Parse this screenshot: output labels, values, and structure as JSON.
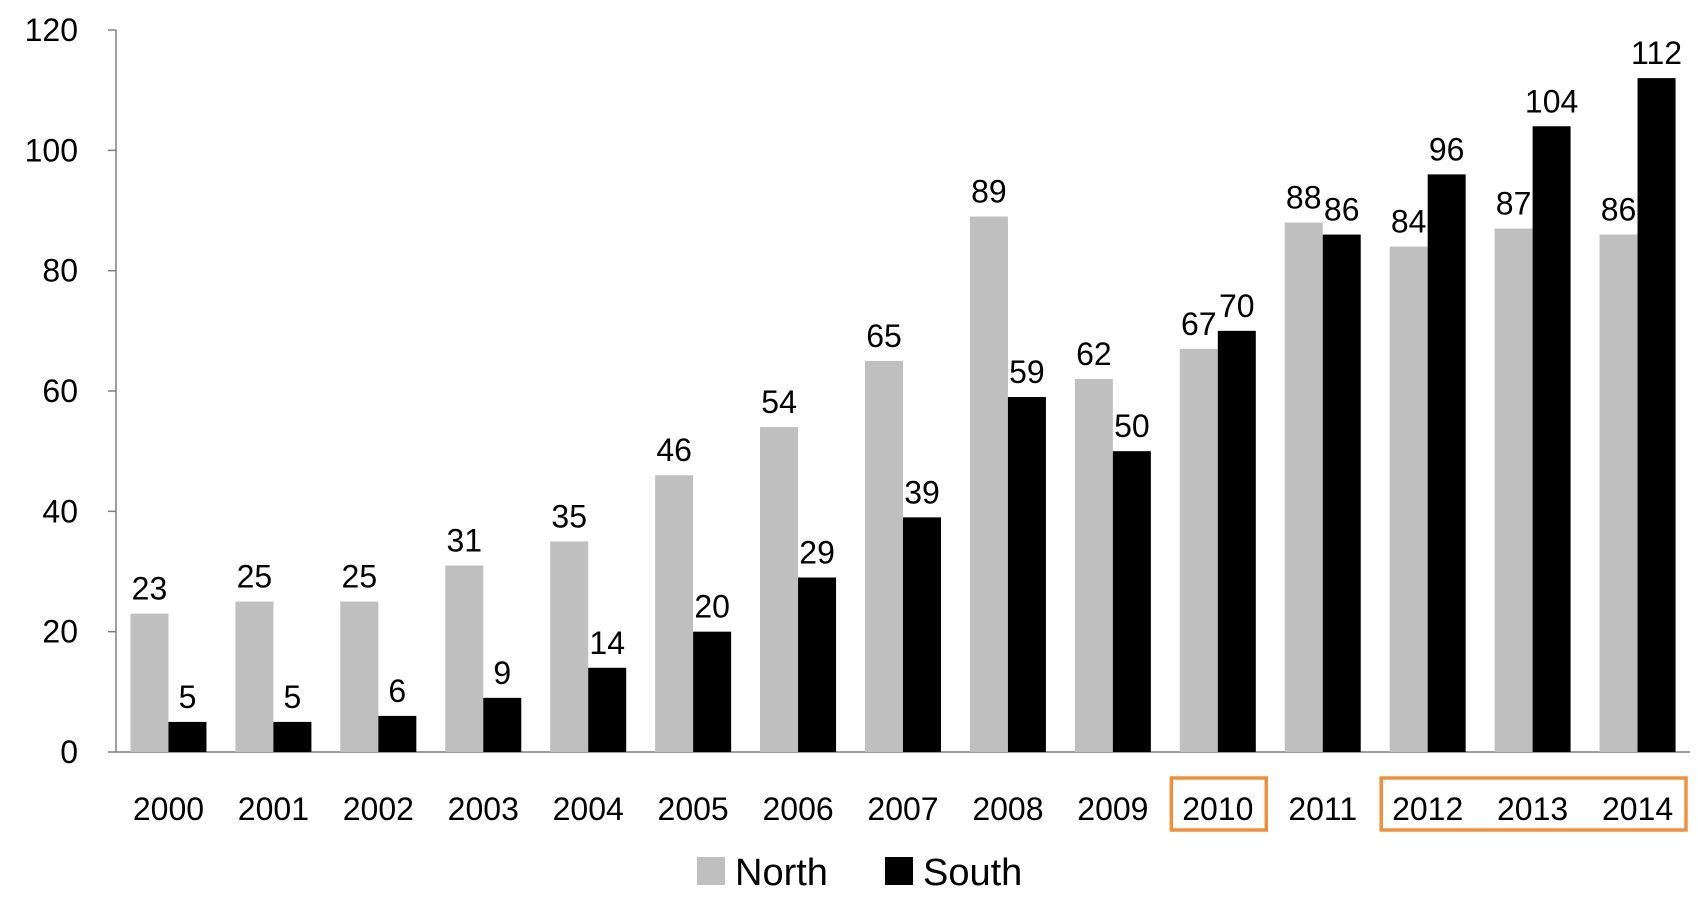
{
  "chart_data": {
    "type": "bar",
    "title": "",
    "xlabel": "",
    "ylabel": "",
    "ylim": [
      0,
      120
    ],
    "yticks": [
      0,
      20,
      40,
      60,
      80,
      100,
      120
    ],
    "grid": false,
    "legend_position": "bottom",
    "categories": [
      "2000",
      "2001",
      "2002",
      "2003",
      "2004",
      "2005",
      "2006",
      "2007",
      "2008",
      "2009",
      "2010",
      "2011",
      "2012",
      "2013",
      "2014"
    ],
    "series": [
      {
        "name": "North",
        "color": "#bfbfbf",
        "values": [
          23,
          25,
          25,
          31,
          35,
          46,
          54,
          65,
          89,
          62,
          67,
          88,
          84,
          87,
          86
        ]
      },
      {
        "name": "South",
        "color": "#000000",
        "values": [
          5,
          5,
          6,
          9,
          14,
          20,
          29,
          39,
          59,
          50,
          70,
          86,
          96,
          104,
          112
        ]
      }
    ],
    "highlighted_categories": [
      [
        "2010"
      ],
      [
        "2012",
        "2013",
        "2014"
      ]
    ],
    "highlight_color": "#f0913a"
  }
}
